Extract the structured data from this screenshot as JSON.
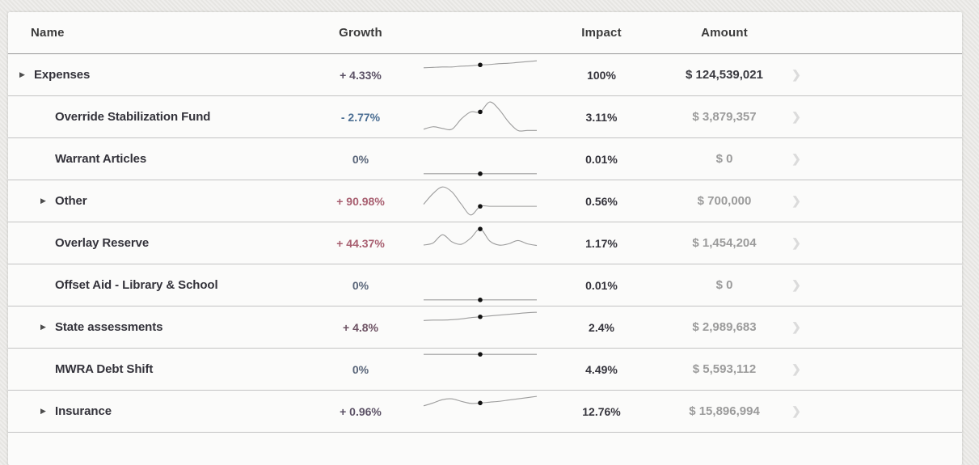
{
  "table": {
    "columns": {
      "name": "Name",
      "growth": "Growth",
      "impact": "Impact",
      "amount": "Amount"
    },
    "rows": [
      {
        "name": "Expenses",
        "level": 0,
        "expandable": true,
        "growth": "+ 4.33%",
        "growth_color": "#5c5266",
        "impact": "100%",
        "amount": "$ 124,539,021",
        "amount_root": true,
        "spark": {
          "values": [
            0.33,
            0.32,
            0.31,
            0.31,
            0.29,
            0.28,
            0.26,
            0.25,
            0.23,
            0.22,
            0.2,
            0.18,
            0.16
          ],
          "dot_index": 6
        }
      },
      {
        "name": "Override Stabilization Fund",
        "level": 1,
        "expandable": false,
        "growth": "- 2.77%",
        "growth_color": "#4b6e93",
        "impact": "3.11%",
        "amount": "$ 3,879,357",
        "amount_root": false,
        "spark": {
          "values": [
            0.8,
            0.74,
            0.78,
            0.8,
            0.55,
            0.38,
            0.38,
            0.14,
            0.32,
            0.62,
            0.83,
            0.83,
            0.83
          ],
          "dot_index": 6
        }
      },
      {
        "name": "Warrant Articles",
        "level": 1,
        "expandable": false,
        "growth": "0%",
        "growth_color": "#596579",
        "impact": "0.01%",
        "amount": "$ 0",
        "amount_root": false,
        "spark": {
          "values": [
            0.86,
            0.86,
            0.86,
            0.86,
            0.86,
            0.86,
            0.86,
            0.86,
            0.86,
            0.86,
            0.86,
            0.86,
            0.86
          ],
          "dot_index": 6
        }
      },
      {
        "name": "Other",
        "level": 1,
        "expandable": true,
        "growth": "+ 90.98%",
        "growth_color": "#a85f70",
        "impact": "0.56%",
        "amount": "$ 700,000",
        "amount_root": false,
        "spark": {
          "values": [
            0.58,
            0.32,
            0.16,
            0.28,
            0.58,
            0.84,
            0.63,
            0.63,
            0.63,
            0.63,
            0.63,
            0.63,
            0.63
          ],
          "dot_index": 6
        }
      },
      {
        "name": "Overlay Reserve",
        "level": 1,
        "expandable": false,
        "growth": "+ 44.37%",
        "growth_color": "#a85f70",
        "impact": "1.17%",
        "amount": "$ 1,454,204",
        "amount_root": false,
        "spark": {
          "values": [
            0.55,
            0.5,
            0.3,
            0.47,
            0.53,
            0.38,
            0.16,
            0.45,
            0.55,
            0.52,
            0.44,
            0.52,
            0.56
          ],
          "dot_index": 6
        }
      },
      {
        "name": "Offset Aid - Library & School",
        "level": 1,
        "expandable": false,
        "growth": "0%",
        "growth_color": "#596579",
        "impact": "0.01%",
        "amount": "$ 0",
        "amount_root": false,
        "spark": {
          "values": [
            0.86,
            0.86,
            0.86,
            0.86,
            0.86,
            0.86,
            0.86,
            0.86,
            0.86,
            0.86,
            0.86,
            0.86,
            0.86
          ],
          "dot_index": 6
        }
      },
      {
        "name": "State assessments",
        "level": 1,
        "expandable": true,
        "growth": "+ 4.8%",
        "growth_color": "#6d5263",
        "impact": "2.4%",
        "amount": "$ 2,989,683",
        "amount_root": false,
        "spark": {
          "values": [
            0.34,
            0.33,
            0.33,
            0.32,
            0.3,
            0.27,
            0.25,
            0.23,
            0.21,
            0.19,
            0.17,
            0.15,
            0.14
          ],
          "dot_index": 6
        }
      },
      {
        "name": "MWRA Debt Shift",
        "level": 1,
        "expandable": false,
        "growth": "0%",
        "growth_color": "#596579",
        "impact": "4.49%",
        "amount": "$ 5,593,112",
        "amount_root": false,
        "spark": {
          "values": [
            0.14,
            0.14,
            0.14,
            0.14,
            0.14,
            0.14,
            0.14,
            0.14,
            0.14,
            0.14,
            0.14,
            0.14,
            0.14
          ],
          "dot_index": 6
        }
      },
      {
        "name": "Insurance",
        "level": 1,
        "expandable": true,
        "growth": "+ 0.96%",
        "growth_color": "#5c5266",
        "impact": "12.76%",
        "amount": "$ 15,896,994",
        "amount_root": false,
        "spark": {
          "values": [
            0.37,
            0.3,
            0.22,
            0.2,
            0.26,
            0.31,
            0.3,
            0.28,
            0.26,
            0.23,
            0.2,
            0.17,
            0.14
          ],
          "dot_index": 6
        }
      }
    ]
  },
  "icons": {
    "expand_arrow": "▶",
    "row_chevron": "❯"
  },
  "colors": {
    "page_background": "#e9e8e5",
    "card_background": "#fbfbfa",
    "header_divider": "#979797",
    "row_divider": "#c3c3c3",
    "spark_line": "#9c9c9c",
    "spark_dot": "#111111",
    "amount_muted": "#9b9b9b",
    "amount_root": "#3a3a40"
  }
}
